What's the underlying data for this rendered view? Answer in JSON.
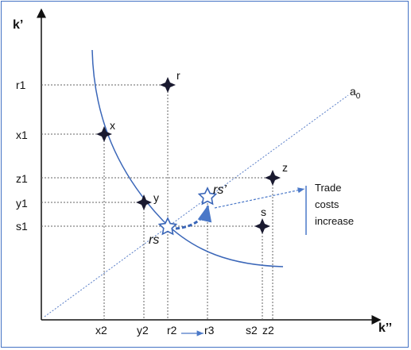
{
  "axes": {
    "y_label": "k’",
    "x_label": "k’’"
  },
  "y_ticks": {
    "r1": "r1",
    "x1": "x1",
    "z1": "z1",
    "y1": "y1",
    "s1": "s1"
  },
  "x_ticks": {
    "x2": "x2",
    "y2": "y2",
    "r2": "r2",
    "r3": "r3",
    "s2": "s2",
    "z2": "z2"
  },
  "points": {
    "x": "x",
    "r": "r",
    "z": "z",
    "y": "y",
    "s": "s",
    "rs": "rs",
    "rs_prime": "rs’"
  },
  "line": {
    "label_base": "a",
    "label_sub": "0"
  },
  "annotation": {
    "line1": "Trade",
    "line2": "costs",
    "line3": "increase"
  },
  "colors": {
    "axis": "#111111",
    "curve": "#3a66b8",
    "dotted": "#666666",
    "arrow": "#4a78c8",
    "frame": "#4472c4"
  }
}
